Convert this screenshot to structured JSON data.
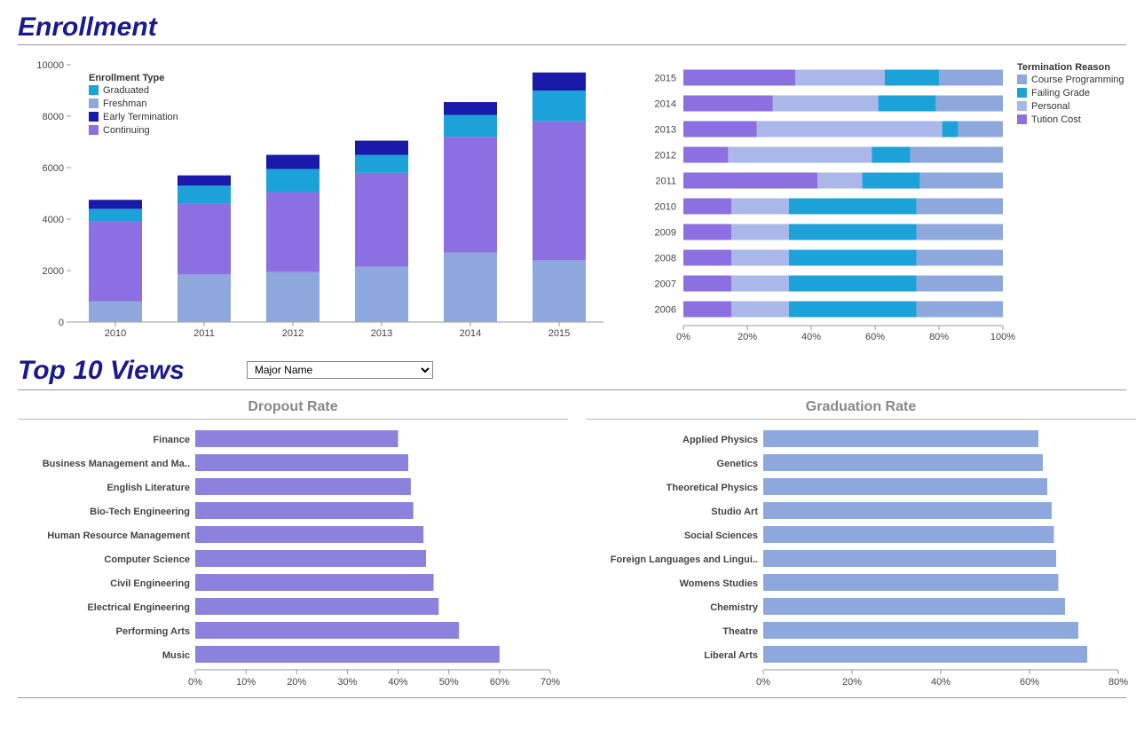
{
  "titles": {
    "enrollment": "Enrollment",
    "top10": "Top 10 Views",
    "dropout": "Dropout Rate",
    "graduation": "Graduation Rate"
  },
  "dropdown": {
    "selected": "Major Name"
  },
  "colors": {
    "title": "#1a1a8a",
    "graduated": "#1ca2d8",
    "freshman": "#8ea7dd",
    "early_termination": "#1a1aaa",
    "continuing": "#8c6fe0",
    "course_programming": "#8ea7dd",
    "failing_grade": "#1ca2d8",
    "personal": "#a9b8e8",
    "tuition_cost": "#8c6fe0",
    "dropout_bar": "#8c82dd",
    "graduation_bar": "#8ea7dd",
    "axis": "#999999",
    "tick": "#cccccc",
    "subtitle": "#888888"
  },
  "enrollment_chart": {
    "type": "stacked-bar",
    "legend_title": "Enrollment Type",
    "legend": [
      "Graduated",
      "Freshman",
      "Early Termination",
      "Continuing"
    ],
    "categories": [
      "2010",
      "2011",
      "2012",
      "2013",
      "2014",
      "2015"
    ],
    "ylim": [
      0,
      10000
    ],
    "ytick_step": 2000,
    "series": {
      "freshman": [
        800,
        1850,
        1950,
        2150,
        2700,
        2400
      ],
      "continuing": [
        3100,
        2750,
        3100,
        3650,
        4500,
        5400
      ],
      "graduated": [
        500,
        700,
        900,
        700,
        850,
        1200
      ],
      "early_termination": [
        350,
        400,
        550,
        550,
        500,
        700
      ]
    }
  },
  "termination_chart": {
    "type": "stacked-bar-horizontal-100",
    "legend_title": "Termination Reason",
    "legend": [
      "Course Programming",
      "Failing Grade",
      "Personal",
      "Tution Cost"
    ],
    "categories": [
      "2015",
      "2014",
      "2013",
      "2012",
      "2011",
      "2010",
      "2009",
      "2008",
      "2007",
      "2006"
    ],
    "xlim": [
      0,
      100
    ],
    "xtick_step": 20,
    "series": {
      "tuition_cost": [
        35,
        28,
        23,
        14,
        42,
        15,
        15,
        15,
        15,
        15
      ],
      "personal": [
        28,
        33,
        58,
        45,
        14,
        18,
        18,
        18,
        18,
        18
      ],
      "failing_grade": [
        17,
        18,
        5,
        12,
        18,
        40,
        40,
        40,
        40,
        40
      ],
      "course_programming": [
        20,
        21,
        14,
        29,
        26,
        27,
        27,
        27,
        27,
        27
      ]
    }
  },
  "dropout_chart": {
    "type": "bar-horizontal",
    "xlim": [
      0,
      70
    ],
    "xtick_step": 10,
    "items": [
      {
        "label": "Finance",
        "value": 40
      },
      {
        "label": "Business Management and Ma..",
        "value": 42
      },
      {
        "label": "English Literature",
        "value": 42.5
      },
      {
        "label": "Bio-Tech Engineering",
        "value": 43
      },
      {
        "label": "Human Resource Management",
        "value": 45
      },
      {
        "label": "Computer Science",
        "value": 45.5
      },
      {
        "label": "Civil Engineering",
        "value": 47
      },
      {
        "label": "Electrical Engineering",
        "value": 48
      },
      {
        "label": "Performing Arts",
        "value": 52
      },
      {
        "label": "Music",
        "value": 60
      }
    ]
  },
  "graduation_chart": {
    "type": "bar-horizontal",
    "xlim": [
      0,
      80
    ],
    "xtick_step": 20,
    "items": [
      {
        "label": "Applied Physics",
        "value": 62
      },
      {
        "label": "Genetics",
        "value": 63
      },
      {
        "label": "Theoretical Physics",
        "value": 64
      },
      {
        "label": "Studio Art",
        "value": 65
      },
      {
        "label": "Social Sciences",
        "value": 65.5
      },
      {
        "label": "Foreign Languages and Lingui..",
        "value": 66
      },
      {
        "label": "Womens Studies",
        "value": 66.5
      },
      {
        "label": "Chemistry",
        "value": 68
      },
      {
        "label": "Theatre",
        "value": 71
      },
      {
        "label": "Liberal Arts",
        "value": 73
      }
    ]
  }
}
